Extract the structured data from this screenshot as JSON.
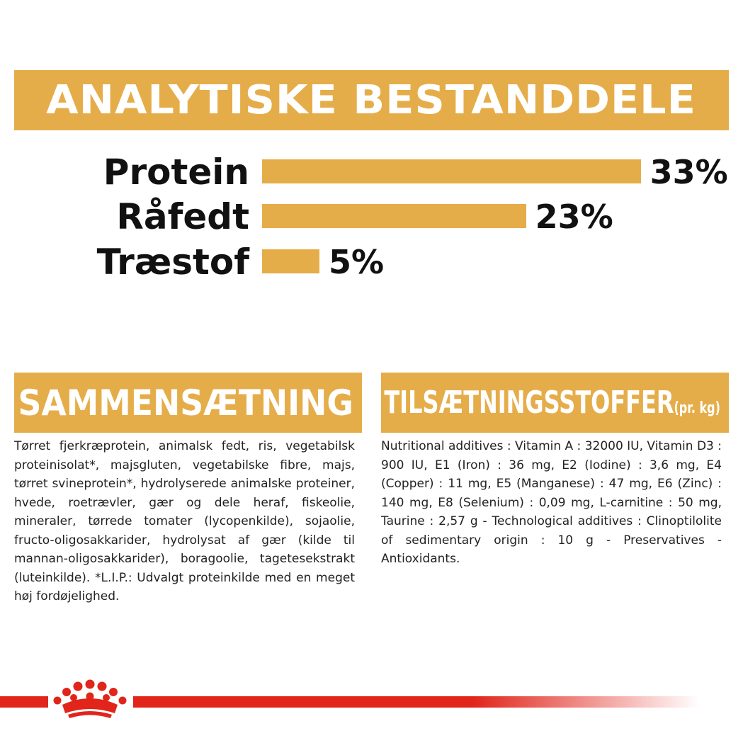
{
  "analytics": {
    "title": "ANALYTISKE BESTANDDELE",
    "rows": [
      {
        "label": "Protein",
        "value": "33%",
        "percent": 33
      },
      {
        "label": "Råfedt",
        "value": "23%",
        "percent": 23
      },
      {
        "label": "Træstof",
        "value": "5%",
        "percent": 5
      }
    ]
  },
  "composition": {
    "title": "SAMMENSÆTNING",
    "text": "Tørret fjerkræprotein, animalsk fedt, ris, vegetabilsk proteinisolat*, majsgluten, vegetabilske fibre, majs, tørret svineprotein*, hydrolyserede animalske proteiner, hvede, roetrævler, gær og dele heraf, fiskeolie, mineraler, tørrede tomater (lycopenkilde), sojaolie, fructo-oligosakkarider, hydrolysat af gær (kilde til mannan-oligosakkarider), boragoolie, tagetesekstrakt (luteinkilde). *L.I.P.: Udvalgt proteinkilde med en meget høj fordøjelighed."
  },
  "additives": {
    "title": "TILSÆTNINGSSTOFFER",
    "title_suffix": "(pr. kg)",
    "text": "Nutritional additives : Vitamin A : 32000 IU, Vitamin D3 : 900 IU, E1 (Iron) : 36 mg, E2 (Iodine) : 3,6 mg, E4 (Copper) : 11 mg, E5 (Manganese) : 47 mg, E6 (Zinc) : 140 mg, E8 (Selenium) : 0,09 mg, L-carnitine : 50 mg, Taurine : 2,57 g - Technological additives : Clinoptilolite of sedimentary origin : 10 g - Preservatives - Antioxidants."
  },
  "colors": {
    "accent": "#e5ad49",
    "brand_red": "#e1251b"
  }
}
